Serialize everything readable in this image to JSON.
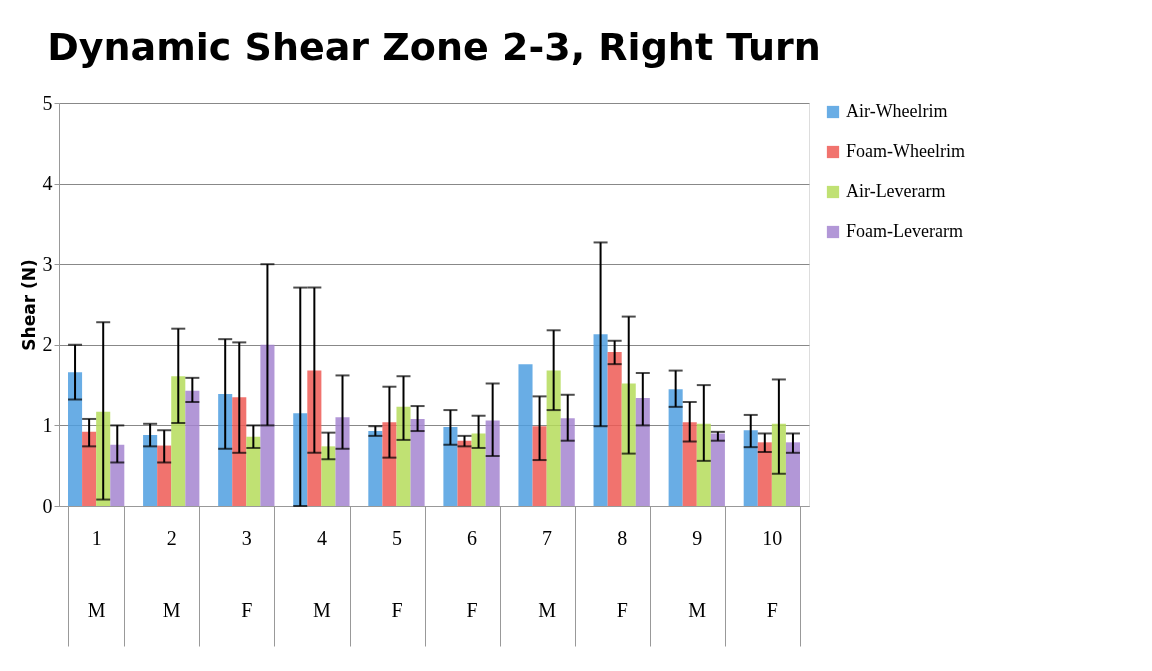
{
  "chart_data": {
    "type": "bar",
    "title": "Dynamic Shear Zone 2-3, Right Turn",
    "ylabel": "Shear (N)",
    "categories": [
      "1\nM",
      "2\nM",
      "3\nF",
      "4\nM",
      "5\nF",
      "6\nF",
      "7\nM",
      "8\nF",
      "9\nM",
      "10\nF"
    ],
    "ylim": [
      0,
      5
    ],
    "yticks": [
      0,
      1,
      2,
      3,
      4,
      5
    ],
    "grid": "y",
    "legend": "right",
    "series": [
      {
        "name": "Air-Wheelrim",
        "color": "#4f9fe0",
        "values": [
          1.66,
          0.88,
          1.39,
          1.15,
          0.93,
          0.98,
          1.76,
          2.13,
          1.45,
          0.94
        ],
        "errors": [
          [
            1.32,
            2.0
          ],
          [
            0.74,
            1.02
          ],
          [
            0.71,
            2.07
          ],
          [
            0,
            2.71
          ],
          [
            0.87,
            0.99
          ],
          [
            0.76,
            1.19
          ],
          null,
          [
            0.99,
            3.27
          ],
          [
            1.23,
            1.68
          ],
          [
            0.73,
            1.13
          ]
        ]
      },
      {
        "name": "Foam-Wheelrim",
        "color": "#ee5a55",
        "values": [
          0.92,
          0.75,
          1.35,
          1.68,
          1.04,
          0.81,
          0.99,
          1.91,
          1.04,
          0.79
        ],
        "errors": [
          [
            0.74,
            1.08
          ],
          [
            0.54,
            0.94
          ],
          [
            0.66,
            2.03
          ],
          [
            0.66,
            2.71
          ],
          [
            0.6,
            1.48
          ],
          [
            0.74,
            0.87
          ],
          [
            0.57,
            1.36
          ],
          [
            1.76,
            2.05
          ],
          [
            0.8,
            1.29
          ],
          [
            0.67,
            0.9
          ]
        ]
      },
      {
        "name": "Air-Leverarm",
        "color": "#b5dc5a",
        "values": [
          1.17,
          1.61,
          0.86,
          0.74,
          1.23,
          0.9,
          1.68,
          1.52,
          1.02,
          1.02
        ],
        "errors": [
          [
            0.08,
            2.28
          ],
          [
            1.03,
            2.2
          ],
          [
            0.72,
            1.0
          ],
          [
            0.58,
            0.91
          ],
          [
            0.82,
            1.61
          ],
          [
            0.72,
            1.12
          ],
          [
            1.19,
            2.18
          ],
          [
            0.65,
            2.35
          ],
          [
            0.56,
            1.5
          ],
          [
            0.4,
            1.57
          ]
        ]
      },
      {
        "name": "Foam-Leverarm",
        "color": "#a485d0",
        "values": [
          0.76,
          1.43,
          2.0,
          1.1,
          1.08,
          1.06,
          1.09,
          1.34,
          0.9,
          0.79
        ],
        "errors": [
          [
            0.54,
            1.0
          ],
          [
            1.29,
            1.59
          ],
          [
            1.0,
            3.0
          ],
          [
            0.71,
            1.62
          ],
          [
            0.93,
            1.24
          ],
          [
            0.62,
            1.52
          ],
          [
            0.81,
            1.38
          ],
          [
            1.0,
            1.65
          ],
          [
            0.81,
            0.92
          ],
          [
            0.66,
            0.9
          ]
        ]
      }
    ]
  }
}
